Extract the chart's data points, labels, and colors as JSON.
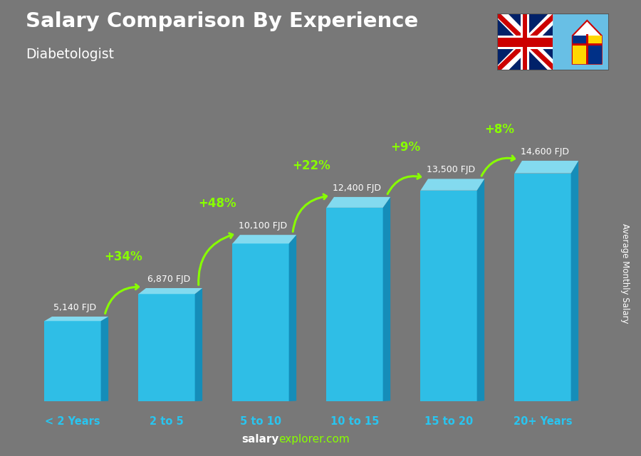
{
  "title": "Salary Comparison By Experience",
  "subtitle": "Diabetologist",
  "ylabel": "Average Monthly Salary",
  "categories": [
    "< 2 Years",
    "2 to 5",
    "5 to 10",
    "10 to 15",
    "15 to 20",
    "20+ Years"
  ],
  "values": [
    5140,
    6870,
    10100,
    12400,
    13500,
    14600
  ],
  "labels": [
    "5,140 FJD",
    "6,870 FJD",
    "10,100 FJD",
    "12,400 FJD",
    "13,500 FJD",
    "14,600 FJD"
  ],
  "pct_changes": [
    "+34%",
    "+48%",
    "+22%",
    "+9%",
    "+8%"
  ],
  "color_front": "#29C5F0",
  "color_top": "#85E3FA",
  "color_side": "#0D8FBF",
  "bg_color": "#787878",
  "title_color": "#ffffff",
  "subtitle_color": "#ffffff",
  "label_color": "#ffffff",
  "pct_color": "#88FF00",
  "cat_color": "#29C5F0",
  "arrow_color": "#88FF00",
  "footer_salary_color": "#ffffff",
  "footer_explorer_color": "#88FF00"
}
